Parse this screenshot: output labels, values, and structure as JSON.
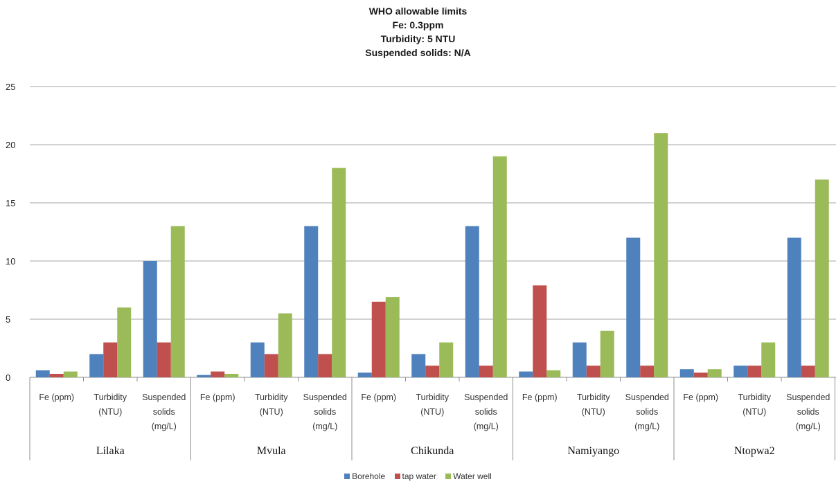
{
  "title_lines": [
    "WHO allowable limits",
    "Fe: 0.3ppm",
    "Turbidity: 5 NTU",
    "Suspended solids: N/A"
  ],
  "chart_data": {
    "type": "bar",
    "ylim": [
      0,
      25
    ],
    "yticks": [
      0,
      5,
      10,
      15,
      20,
      25
    ],
    "grid": true,
    "legend_position": "bottom",
    "groups": [
      "Lilaka",
      "Mvula",
      "Chikunda",
      "Namiyango",
      "Ntopwa2"
    ],
    "category_labels": [
      [
        "Fe (ppm)"
      ],
      [
        "Turbidity",
        "(NTU)"
      ],
      [
        "Suspended",
        "solids",
        "(mg/L)"
      ]
    ],
    "series": [
      {
        "name": "Borehole",
        "color": "#4f81bd",
        "values": [
          0.6,
          2,
          10,
          0.2,
          3,
          13,
          0.4,
          2,
          13,
          0.5,
          3,
          12,
          0.7,
          1,
          12
        ]
      },
      {
        "name": "tap water",
        "color": "#c0504d",
        "values": [
          0.3,
          3,
          3,
          0.5,
          2,
          2,
          6.5,
          1,
          1,
          7.9,
          1,
          1,
          0.4,
          1,
          1
        ]
      },
      {
        "name": "Water well",
        "color": "#9bbb59",
        "values": [
          0.5,
          6,
          13,
          0.3,
          5.5,
          18,
          6.9,
          3,
          19,
          0.6,
          4,
          21,
          0.7,
          3,
          17
        ]
      }
    ]
  }
}
